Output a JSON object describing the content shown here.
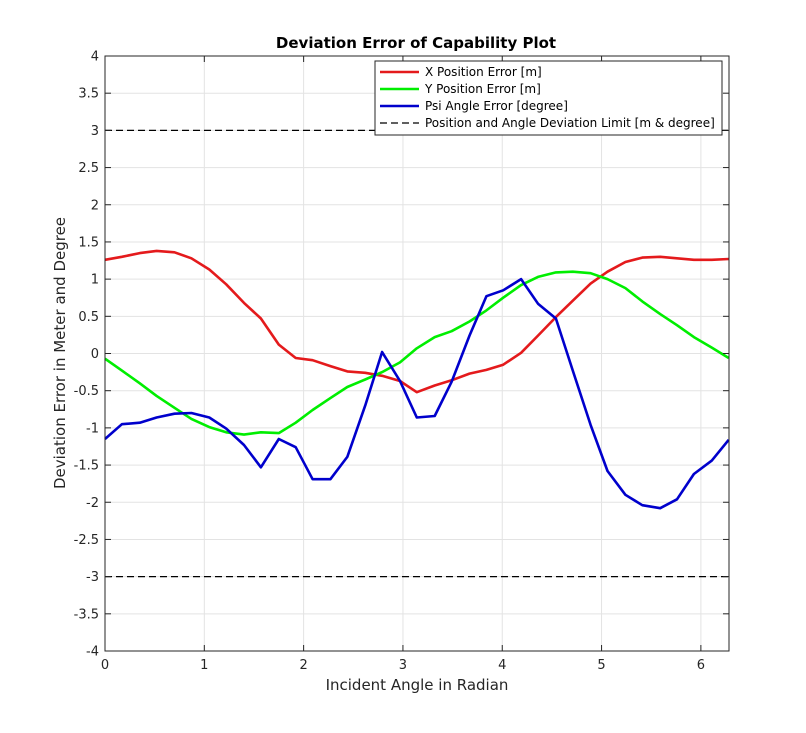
{
  "chart_data": {
    "type": "line",
    "title": "Deviation Error of Capability Plot",
    "xlabel": "Incident Angle in Radian",
    "ylabel": "Deviation Error in Meter and Degree",
    "xlim": [
      0,
      6.2832
    ],
    "ylim": [
      -4,
      4
    ],
    "xticks": [
      "0",
      "1",
      "2",
      "3",
      "4",
      "5",
      "6"
    ],
    "yticks": [
      "-4",
      "-3.5",
      "-3",
      "-2.5",
      "-2",
      "-1.5",
      "-1",
      "-0.5",
      "0",
      "0.5",
      "1",
      "1.5",
      "2",
      "2.5",
      "3",
      "3.5",
      "4"
    ],
    "grid": true,
    "legend_position": "top-right",
    "series": [
      {
        "name": "X Position Error [m]",
        "color": "#e41a1c",
        "style": "solid",
        "x": [
          0,
          0.17,
          0.35,
          0.52,
          0.7,
          0.87,
          1.05,
          1.22,
          1.4,
          1.57,
          1.75,
          1.92,
          2.09,
          2.27,
          2.44,
          2.62,
          2.79,
          2.97,
          3.14,
          3.32,
          3.49,
          3.67,
          3.84,
          4.01,
          4.19,
          4.36,
          4.54,
          4.71,
          4.89,
          5.06,
          5.24,
          5.41,
          5.59,
          5.76,
          5.93,
          6.11,
          6.28
        ],
        "y": [
          1.26,
          1.3,
          1.35,
          1.38,
          1.36,
          1.28,
          1.13,
          0.93,
          0.68,
          0.47,
          0.12,
          -0.06,
          -0.09,
          -0.17,
          -0.24,
          -0.26,
          -0.3,
          -0.37,
          -0.52,
          -0.43,
          -0.36,
          -0.27,
          -0.22,
          -0.15,
          0.01,
          0.24,
          0.49,
          0.71,
          0.94,
          1.1,
          1.23,
          1.29,
          1.3,
          1.28,
          1.26,
          1.26,
          1.27
        ]
      },
      {
        "name": "Y Position Error [m]",
        "color": "#00ee00",
        "style": "solid",
        "x": [
          0,
          0.17,
          0.35,
          0.52,
          0.7,
          0.87,
          1.05,
          1.22,
          1.4,
          1.57,
          1.75,
          1.92,
          2.09,
          2.27,
          2.44,
          2.62,
          2.79,
          2.97,
          3.14,
          3.32,
          3.49,
          3.67,
          3.84,
          4.01,
          4.19,
          4.36,
          4.54,
          4.71,
          4.89,
          5.06,
          5.24,
          5.41,
          5.59,
          5.76,
          5.93,
          6.11,
          6.28
        ],
        "y": [
          -0.07,
          -0.23,
          -0.4,
          -0.57,
          -0.73,
          -0.88,
          -0.99,
          -1.06,
          -1.09,
          -1.06,
          -1.07,
          -0.93,
          -0.76,
          -0.6,
          -0.45,
          -0.35,
          -0.25,
          -0.12,
          0.07,
          0.22,
          0.3,
          0.43,
          0.58,
          0.75,
          0.92,
          1.03,
          1.09,
          1.1,
          1.08,
          1.0,
          0.88,
          0.7,
          0.53,
          0.38,
          0.22,
          0.08,
          -0.06
        ]
      },
      {
        "name": "Psi Angle Error [degree]",
        "color": "#0000cc",
        "style": "solid",
        "x": [
          0,
          0.17,
          0.35,
          0.52,
          0.7,
          0.87,
          1.05,
          1.22,
          1.4,
          1.57,
          1.75,
          1.92,
          2.09,
          2.27,
          2.44,
          2.62,
          2.79,
          2.97,
          3.14,
          3.32,
          3.49,
          3.67,
          3.84,
          4.01,
          4.19,
          4.36,
          4.54,
          4.71,
          4.89,
          5.06,
          5.24,
          5.41,
          5.59,
          5.76,
          5.93,
          6.11,
          6.28
        ],
        "y": [
          -1.15,
          -0.95,
          -0.93,
          -0.86,
          -0.81,
          -0.8,
          -0.86,
          -1.01,
          -1.23,
          -1.53,
          -1.15,
          -1.26,
          -1.69,
          -1.69,
          -1.39,
          -0.7,
          0.02,
          -0.37,
          -0.86,
          -0.84,
          -0.38,
          0.24,
          0.77,
          0.85,
          1.0,
          0.67,
          0.47,
          -0.23,
          -0.96,
          -1.58,
          -1.9,
          -2.04,
          -2.08,
          -1.96,
          -1.62,
          -1.44,
          -1.16
        ]
      },
      {
        "name": "Position and Angle Deviation Limit [m & degree]",
        "color": "#000000",
        "style": "dashed",
        "x": [
          0,
          6.2832
        ],
        "y": [
          3,
          3
        ]
      },
      {
        "name": "",
        "color": "#000000",
        "style": "dashed",
        "x": [
          0,
          6.2832
        ],
        "y": [
          -3,
          -3
        ]
      }
    ]
  }
}
